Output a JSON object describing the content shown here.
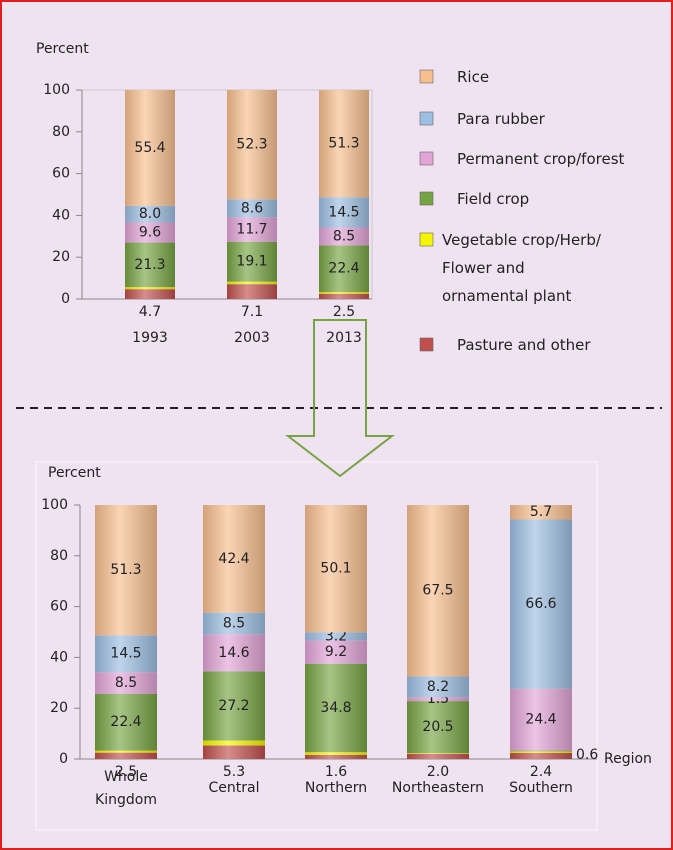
{
  "chart_data": [
    {
      "type": "stacked_bar",
      "y_label": "Percent",
      "categories": [
        "1993",
        "2003",
        "2013"
      ],
      "ylim": [
        0,
        100
      ],
      "yticks": [
        0,
        20,
        40,
        60,
        80,
        100
      ],
      "legend": true,
      "series": [
        {
          "name": "Pasture and other",
          "color": "#c0504d",
          "values": [
            4.7,
            7.1,
            2.5
          ],
          "value_labels": [
            "4.7",
            "7.1",
            "2.5"
          ]
        },
        {
          "name": "Vegetable crop/Herb/\nFlower and\nornamental plant",
          "color": "#f5f500",
          "values": [
            1.0,
            1.2,
            0.8
          ],
          "value_labels": [
            "1.0",
            "1.2",
            "0.8"
          ]
        },
        {
          "name": "Field crop",
          "color": "#77a443",
          "values": [
            21.3,
            19.1,
            22.4
          ],
          "value_labels": [
            "21.3",
            "19.1",
            "22.4"
          ]
        },
        {
          "name": "Permanent crop/forest",
          "color": "#e2a4d7",
          "values": [
            9.6,
            11.7,
            8.5
          ],
          "value_labels": [
            "9.6",
            "11.7",
            "8.5"
          ]
        },
        {
          "name": "Para rubber",
          "color": "#9dbfe2",
          "values": [
            8.0,
            8.6,
            14.5
          ],
          "value_labels": [
            "8.0",
            "8.6",
            "14.5"
          ]
        },
        {
          "name": "Rice",
          "color": "#f8bf8e",
          "values": [
            55.4,
            52.3,
            51.3
          ],
          "value_labels": [
            "55.4",
            "52.3",
            "51.3"
          ]
        }
      ]
    },
    {
      "type": "stacked_bar",
      "y_label": "Percent",
      "x_label": "Region",
      "categories": [
        "Whole\nKingdom",
        "Central",
        "Northern",
        "Northeastern",
        "Southern"
      ],
      "ylim": [
        0,
        100
      ],
      "yticks": [
        0,
        20,
        40,
        60,
        80,
        100
      ],
      "legend": false,
      "series": [
        {
          "color": "#c0504d",
          "values": [
            2.5,
            5.3,
            1.6,
            2.0,
            2.4
          ],
          "value_labels": [
            "2.5",
            "5.3",
            "1.6",
            "2.0",
            "2.4"
          ]
        },
        {
          "color": "#f5f500",
          "values": [
            0.8,
            2.0,
            1.1,
            0.3,
            0.6
          ],
          "value_labels": [
            "0.8",
            "2.0",
            "1.1",
            "0.3",
            "0.6"
          ]
        },
        {
          "color": "#77a443",
          "values": [
            22.4,
            27.2,
            34.8,
            20.5,
            0.3
          ],
          "value_labels": [
            "22.4",
            "27.2",
            "34.8",
            "20.5",
            "0.3"
          ]
        },
        {
          "color": "#e2a4d7",
          "values": [
            8.5,
            14.6,
            9.2,
            1.5,
            24.4
          ],
          "value_labels": [
            "8.5",
            "14.6",
            "9.2",
            "1.5",
            "24.4"
          ]
        },
        {
          "color": "#9dbfe2",
          "values": [
            14.5,
            8.5,
            3.2,
            8.2,
            66.6
          ],
          "value_labels": [
            "14.5",
            "8.5",
            "3.2",
            "8.2",
            "66.6"
          ]
        },
        {
          "color": "#f8bf8e",
          "values": [
            51.3,
            42.4,
            50.1,
            67.5,
            5.7
          ],
          "value_labels": [
            "51.3",
            "42.4",
            "50.1",
            "67.5",
            "5.7"
          ]
        }
      ]
    }
  ]
}
